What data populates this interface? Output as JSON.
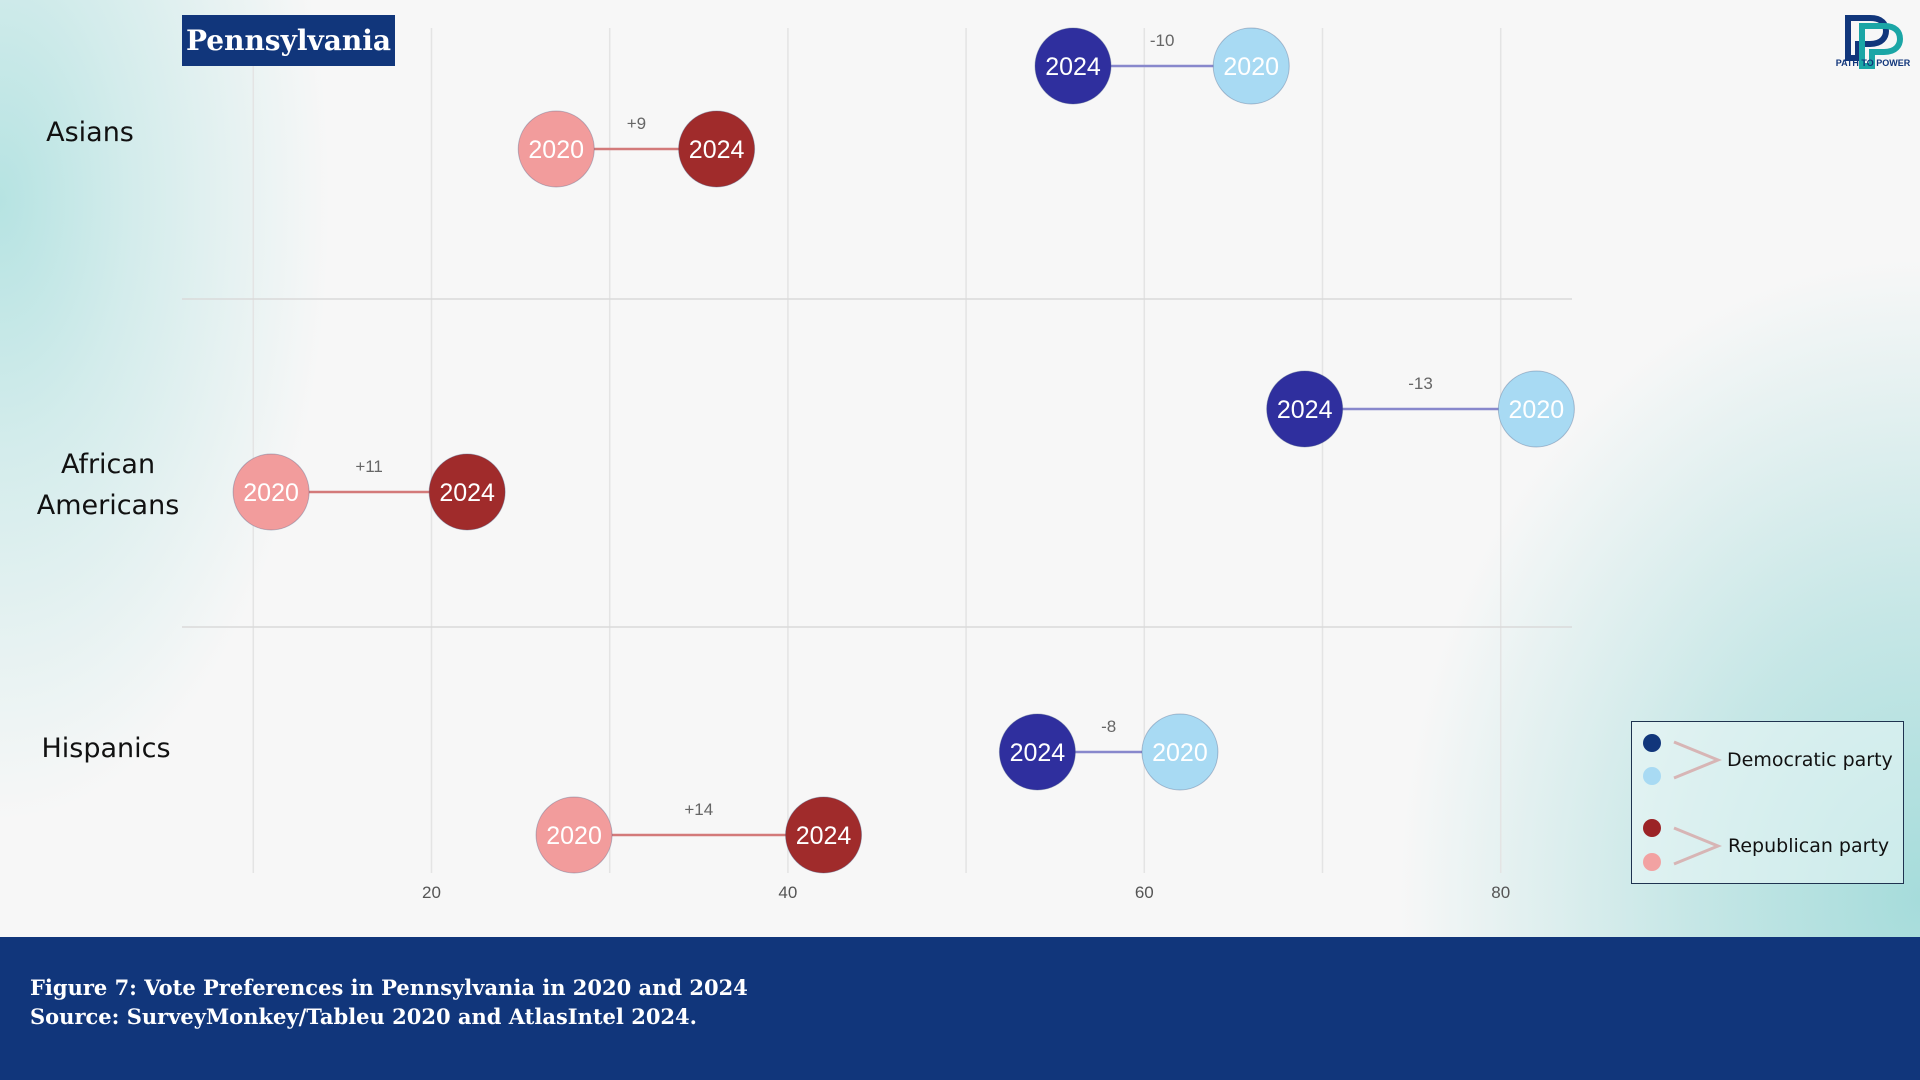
{
  "header": {
    "state": "Pennsylvania",
    "logo_text": "PATH TO POWER"
  },
  "chart_data": {
    "type": "dumbbell",
    "xlim": [
      6,
      84
    ],
    "x_ticks": [
      20,
      40,
      60,
      80
    ],
    "groups": [
      {
        "label": "Asians",
        "democratic": {
          "2020": 66,
          "2024": 56,
          "change": "-10"
        },
        "republican": {
          "2020": 27,
          "2024": 36,
          "change": "+9"
        }
      },
      {
        "label": "African Americans",
        "democratic": {
          "2020": 82,
          "2024": 69,
          "change": "-13"
        },
        "republican": {
          "2020": 11,
          "2024": 22,
          "change": "+11"
        }
      },
      {
        "label": "Hispanics",
        "democratic": {
          "2020": 62,
          "2024": 54,
          "change": "-8"
        },
        "republican": {
          "2020": 28,
          "2024": 42,
          "change": "+14"
        }
      }
    ],
    "legend": [
      {
        "label": "Democratic party",
        "colors": [
          "#11367b",
          "#a8daf3"
        ]
      },
      {
        "label": "Republican party",
        "colors": [
          "#9b2326",
          "#f2a2a2"
        ]
      }
    ],
    "year_labels": {
      "new": "2024",
      "old": "2020"
    },
    "colors": {
      "dem_2024": "#2f2f9e",
      "dem_2020": "#a8daf3",
      "dem_line": "#8888cc",
      "rep_2024": "#a02b2b",
      "rep_2020": "#f29c9c",
      "rep_line": "#d37a7a"
    }
  },
  "footer": {
    "caption_line1": "Figure 7: Vote Preferences in Pennsylvania in 2020 and 2024",
    "caption_line2": "Source: SurveyMonkey/Tableu 2020 and AtlasIntel 2024."
  }
}
